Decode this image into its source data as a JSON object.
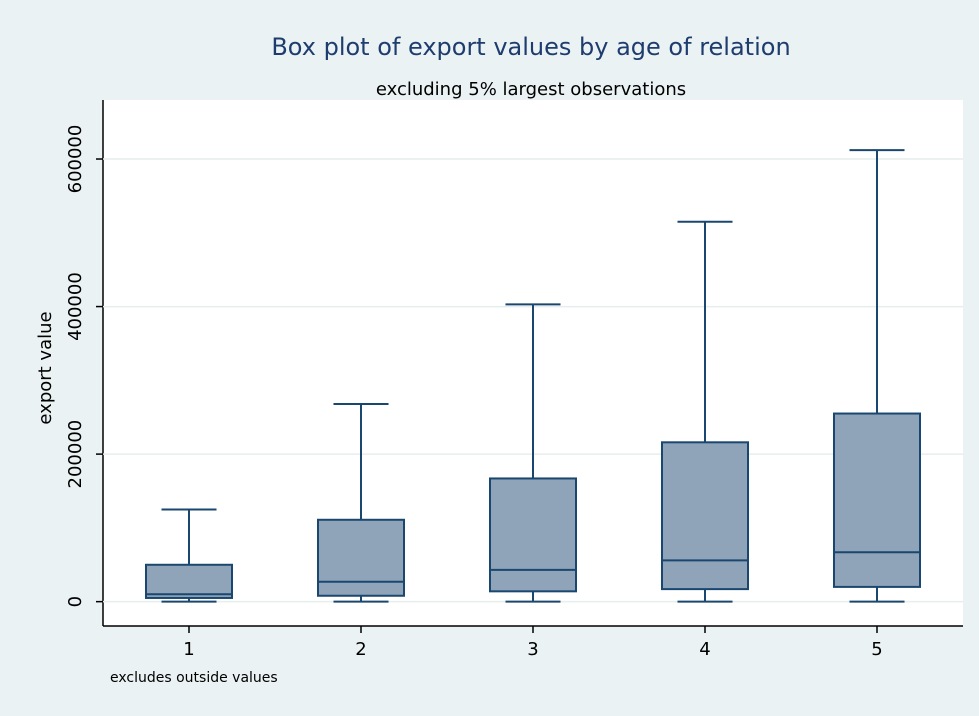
{
  "chart_data": {
    "type": "box",
    "title": "Box plot of export values by age of relation",
    "subtitle": "excluding 5% largest observations",
    "y_label": "export value",
    "note": "excludes outside values",
    "categories": [
      "1",
      "2",
      "3",
      "4",
      "5"
    ],
    "boxes": [
      {
        "min": 0,
        "q1": 5000,
        "median": 10000,
        "q3": 50000,
        "max": 125000
      },
      {
        "min": 0,
        "q1": 8000,
        "median": 27000,
        "q3": 111000,
        "max": 268000
      },
      {
        "min": 0,
        "q1": 14000,
        "median": 43000,
        "q3": 167000,
        "max": 403000
      },
      {
        "min": 0,
        "q1": 17000,
        "median": 56000,
        "q3": 216000,
        "max": 515000
      },
      {
        "min": 0,
        "q1": 20000,
        "median": 67000,
        "q3": 255000,
        "max": 612000
      }
    ],
    "color": "#8fa3b9",
    "line_color": "#1a476f",
    "ylim": [
      -33000,
      680000
    ],
    "yticks": [
      0,
      200000,
      400000,
      600000
    ],
    "grid": true
  }
}
